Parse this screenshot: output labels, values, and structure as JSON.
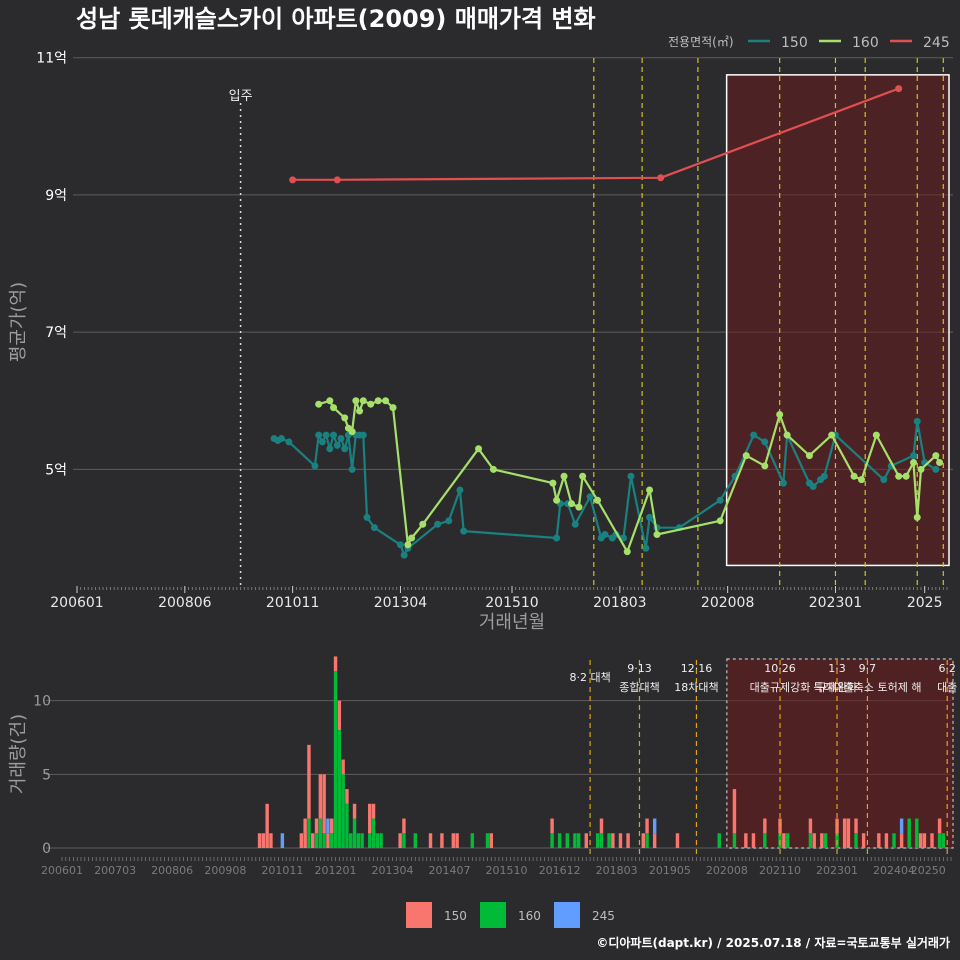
{
  "chart_data": {
    "title": "성남 롯데캐슬스카이 아파트(2009) 매매가격 변화",
    "credit": "©디아파트(dapt.kr) / 2025.07.18 / 자료=국토교통부 실거래가",
    "legend_title": "전용면적(㎡)",
    "series_colors": {
      "150": "#1a8080",
      "160": "#a6e06a",
      "245": "#e05050"
    },
    "bar_colors": {
      "150": "#f8766d",
      "160": "#00ba38",
      "245": "#619cff"
    },
    "price_chart": {
      "type": "line",
      "xlabel": "거래년월",
      "ylabel": "평균가(억)",
      "x_ticks": [
        "200601",
        "200806",
        "201011",
        "201304",
        "201510",
        "201803",
        "202008",
        "202301",
        "2025"
      ],
      "y_ticks": [
        {
          "value": 5,
          "label": "5억"
        },
        {
          "value": 7,
          "label": "7억"
        },
        {
          "value": 9,
          "label": "9억"
        },
        {
          "value": 11,
          "label": "11억"
        }
      ],
      "ylim": [
        3.3,
        11.2
      ],
      "move_in": {
        "date": "2009-09",
        "label": "입주"
      },
      "series": [
        {
          "name": "150",
          "points": [
            [
              "2010-06",
              5.45
            ],
            [
              "2010-07",
              5.42
            ],
            [
              "2010-08",
              5.45
            ],
            [
              "2010-10",
              5.4
            ],
            [
              "2011-05",
              5.05
            ],
            [
              "2011-06",
              5.5
            ],
            [
              "2011-07",
              5.4
            ],
            [
              "2011-08",
              5.5
            ],
            [
              "2011-09",
              5.3
            ],
            [
              "2011-10",
              5.5
            ],
            [
              "2011-11",
              5.35
            ],
            [
              "2011-12",
              5.45
            ],
            [
              "2012-01",
              5.3
            ],
            [
              "2012-02",
              5.5
            ],
            [
              "2012-03",
              5.0
            ],
            [
              "2012-04",
              5.5
            ],
            [
              "2012-05",
              5.5
            ],
            [
              "2012-06",
              5.5
            ],
            [
              "2012-07",
              4.3
            ],
            [
              "2012-09",
              4.15
            ],
            [
              "2013-04",
              3.9
            ],
            [
              "2013-05",
              3.75
            ],
            [
              "2013-06",
              3.85
            ],
            [
              "2014-02",
              4.2
            ],
            [
              "2014-05",
              4.25
            ],
            [
              "2014-08",
              4.7
            ],
            [
              "2014-09",
              4.1
            ],
            [
              "2016-10",
              4.0
            ],
            [
              "2016-11",
              4.5
            ],
            [
              "2017-01",
              4.5
            ],
            [
              "2017-03",
              4.2
            ],
            [
              "2017-07",
              4.6
            ],
            [
              "2017-10",
              4.0
            ],
            [
              "2017-11",
              4.05
            ],
            [
              "2018-01",
              4.0
            ],
            [
              "2018-02",
              4.05
            ],
            [
              "2018-04",
              4.0
            ],
            [
              "2018-06",
              4.9
            ],
            [
              "2018-10",
              3.85
            ],
            [
              "2018-11",
              4.3
            ],
            [
              "2019-01",
              4.15
            ],
            [
              "2019-07",
              4.15
            ],
            [
              "2020-06",
              4.55
            ],
            [
              "2020-10",
              4.9
            ],
            [
              "2021-03",
              5.5
            ],
            [
              "2021-06",
              5.4
            ],
            [
              "2021-11",
              4.8
            ],
            [
              "2021-12",
              5.5
            ],
            [
              "2022-06",
              4.8
            ],
            [
              "2022-07",
              4.75
            ],
            [
              "2022-09",
              4.85
            ],
            [
              "2022-10",
              4.9
            ],
            [
              "2023-01",
              5.5
            ],
            [
              "2024-02",
              4.85
            ],
            [
              "2024-04",
              5.05
            ],
            [
              "2024-10",
              5.2
            ],
            [
              "2024-11",
              5.7
            ],
            [
              "2025-01",
              5.1
            ],
            [
              "2025-04",
              5.0
            ]
          ]
        },
        {
          "name": "160",
          "points": [
            [
              "2011-06",
              5.95
            ],
            [
              "2011-09",
              6.0
            ],
            [
              "2011-10",
              5.9
            ],
            [
              "2012-01",
              5.75
            ],
            [
              "2012-02",
              5.6
            ],
            [
              "2012-03",
              5.55
            ],
            [
              "2012-04",
              6.0
            ],
            [
              "2012-05",
              5.85
            ],
            [
              "2012-06",
              6.0
            ],
            [
              "2012-08",
              5.95
            ],
            [
              "2012-10",
              6.0
            ],
            [
              "2012-12",
              6.0
            ],
            [
              "2013-02",
              5.9
            ],
            [
              "2013-06",
              3.9
            ],
            [
              "2013-07",
              4.0
            ],
            [
              "2013-10",
              4.2
            ],
            [
              "2015-01",
              5.3
            ],
            [
              "2015-05",
              5.0
            ],
            [
              "2016-09",
              4.8
            ],
            [
              "2016-10",
              4.55
            ],
            [
              "2016-12",
              4.9
            ],
            [
              "2017-02",
              4.5
            ],
            [
              "2017-04",
              4.45
            ],
            [
              "2017-05",
              4.9
            ],
            [
              "2017-09",
              4.55
            ],
            [
              "2018-05",
              3.8
            ],
            [
              "2018-11",
              4.7
            ],
            [
              "2019-01",
              4.05
            ],
            [
              "2020-06",
              4.25
            ],
            [
              "2021-01",
              5.2
            ],
            [
              "2021-06",
              5.05
            ],
            [
              "2021-10",
              5.8
            ],
            [
              "2021-12",
              5.5
            ],
            [
              "2022-06",
              5.2
            ],
            [
              "2022-12",
              5.5
            ],
            [
              "2023-06",
              4.9
            ],
            [
              "2023-08",
              4.85
            ],
            [
              "2023-12",
              5.5
            ],
            [
              "2024-06",
              4.9
            ],
            [
              "2024-08",
              4.9
            ],
            [
              "2024-10",
              5.1
            ],
            [
              "2024-11",
              4.3
            ],
            [
              "2024-12",
              5.0
            ],
            [
              "2025-04",
              5.2
            ],
            [
              "2025-05",
              5.1
            ]
          ]
        },
        {
          "name": "245",
          "points": [
            [
              "2010-11",
              9.22
            ],
            [
              "2011-11",
              9.22
            ],
            [
              "2019-02",
              9.25
            ],
            [
              "2024-06",
              10.55
            ]
          ]
        }
      ],
      "policy_lines": [
        "2017-08",
        "2018-09",
        "2019-12",
        "2021-10",
        "2023-01",
        "2023-09",
        "2024-11",
        "2025-06"
      ],
      "policy_color": "#d4c21a",
      "highlight": {
        "start": "2020-08",
        "end": "2025-07",
        "ymin": 3.6,
        "ymax": 10.75
      }
    },
    "volume_chart": {
      "type": "bar",
      "ylabel": "거래량(건)",
      "y_ticks": [
        0,
        5,
        10
      ],
      "ylim": [
        0,
        13.3
      ],
      "x_ticks": [
        "200601",
        "200703",
        "200806",
        "200908",
        "201011",
        "201201",
        "201304",
        "201407",
        "201510",
        "201612",
        "201803",
        "201905",
        "202008",
        "202110",
        "202301",
        "202404",
        "20250"
      ],
      "bars": [
        [
          "2010-05",
          {
            "150": 1
          }
        ],
        [
          "2010-06",
          {
            "150": 1,
            "160": 0
          }
        ],
        [
          "2010-07",
          {
            "150": 3
          }
        ],
        [
          "2010-08",
          {
            "150": 1
          }
        ],
        [
          "2010-11",
          {
            "245": 1
          }
        ],
        [
          "2011-04",
          {
            "150": 1
          }
        ],
        [
          "2011-05",
          {
            "150": 2
          }
        ],
        [
          "2011-06",
          {
            "150": 5,
            "160": 2
          }
        ],
        [
          "2011-07",
          {
            "150": 1
          }
        ],
        [
          "2011-08",
          {
            "150": 1,
            "160": 1
          }
        ],
        [
          "2011-09",
          {
            "150": 3,
            "160": 2
          }
        ],
        [
          "2011-10",
          {
            "150": 4,
            "160": 1
          }
        ],
        [
          "2011-11",
          {
            "150": 1,
            "245": 1
          }
        ],
        [
          "2011-12",
          {
            "150": 1,
            "160": 1
          }
        ],
        [
          "2012-01",
          {
            "160": 12,
            "150": 1
          }
        ],
        [
          "2012-02",
          {
            "160": 8,
            "150": 2
          }
        ],
        [
          "2012-03",
          {
            "160": 5,
            "150": 1
          }
        ],
        [
          "2012-04",
          {
            "160": 3,
            "150": 1
          }
        ],
        [
          "2012-05",
          {
            "160": 1
          }
        ],
        [
          "2012-06",
          {
            "160": 2,
            "150": 1
          }
        ],
        [
          "2012-07",
          {
            "160": 1
          }
        ],
        [
          "2012-08",
          {
            "160": 1
          }
        ],
        [
          "2012-10",
          {
            "150": 2,
            "160": 1
          }
        ],
        [
          "2012-11",
          {
            "160": 2,
            "150": 1
          }
        ],
        [
          "2012-12",
          {
            "160": 1
          }
        ],
        [
          "2013-01",
          {
            "160": 1
          }
        ],
        [
          "2013-06",
          {
            "150": 1
          }
        ],
        [
          "2013-07",
          {
            "150": 1,
            "160": 1
          }
        ],
        [
          "2013-10",
          {
            "160": 1
          }
        ],
        [
          "2014-02",
          {
            "150": 1
          }
        ],
        [
          "2014-05",
          {
            "150": 1
          }
        ],
        [
          "2014-08",
          {
            "150": 1
          }
        ],
        [
          "2014-09",
          {
            "150": 1
          }
        ],
        [
          "2015-01",
          {
            "160": 1
          }
        ],
        [
          "2015-05",
          {
            "160": 1
          }
        ],
        [
          "2015-06",
          {
            "150": 1
          }
        ],
        [
          "2016-10",
          {
            "160": 1,
            "150": 1
          }
        ],
        [
          "2016-12",
          {
            "160": 1
          }
        ],
        [
          "2017-02",
          {
            "160": 1
          }
        ],
        [
          "2017-04",
          {
            "160": 1
          }
        ],
        [
          "2017-05",
          {
            "160": 1
          }
        ],
        [
          "2017-07",
          {
            "150": 1
          }
        ],
        [
          "2017-10",
          {
            "160": 1
          }
        ],
        [
          "2017-11",
          {
            "150": 1,
            "160": 1
          }
        ],
        [
          "2018-01",
          {
            "160": 1
          }
        ],
        [
          "2018-02",
          {
            "150": 1
          }
        ],
        [
          "2018-04",
          {
            "150": 1
          }
        ],
        [
          "2018-06",
          {
            "150": 1
          }
        ],
        [
          "2018-10",
          {
            "150": 1
          }
        ],
        [
          "2018-11",
          {
            "160": 1,
            "150": 1
          }
        ],
        [
          "2019-01",
          {
            "245": 1,
            "150": 1
          }
        ],
        [
          "2019-07",
          {
            "150": 1
          }
        ],
        [
          "2020-06",
          {
            "160": 1
          }
        ],
        [
          "2020-10",
          {
            "150": 3,
            "160": 1
          }
        ],
        [
          "2021-01",
          {
            "150": 1
          }
        ],
        [
          "2021-03",
          {
            "150": 1
          }
        ],
        [
          "2021-06",
          {
            "150": 1,
            "160": 1
          }
        ],
        [
          "2021-10",
          {
            "150": 1,
            "160": 1
          }
        ],
        [
          "2021-11",
          {
            "150": 1
          }
        ],
        [
          "2021-12",
          {
            "160": 1
          }
        ],
        [
          "2022-06",
          {
            "150": 1,
            "160": 1
          }
        ],
        [
          "2022-07",
          {
            "150": 1
          }
        ],
        [
          "2022-09",
          {
            "150": 1
          }
        ],
        [
          "2022-10",
          {
            "160": 1
          }
        ],
        [
          "2023-01",
          {
            "150": 1,
            "160": 1
          }
        ],
        [
          "2023-03",
          {
            "150": 2
          }
        ],
        [
          "2023-04",
          {
            "150": 2
          }
        ],
        [
          "2023-06",
          {
            "150": 1,
            "160": 1
          }
        ],
        [
          "2023-08",
          {
            "150": 1
          }
        ],
        [
          "2023-12",
          {
            "150": 1
          }
        ],
        [
          "2024-02",
          {
            "150": 1
          }
        ],
        [
          "2024-04",
          {
            "160": 1
          }
        ],
        [
          "2024-06",
          {
            "150": 1,
            "245": 1
          }
        ],
        [
          "2024-08",
          {
            "160": 2
          }
        ],
        [
          "2024-10",
          {
            "160": 2
          }
        ],
        [
          "2024-11",
          {
            "150": 1
          }
        ],
        [
          "2024-12",
          {
            "150": 1
          }
        ],
        [
          "2025-02",
          {
            "150": 1
          }
        ],
        [
          "2025-04",
          {
            "150": 1,
            "160": 1
          }
        ],
        [
          "2025-05",
          {
            "160": 1
          }
        ]
      ],
      "policies": [
        {
          "date": "2017-08",
          "line1": "8·2 대책",
          "line2": ""
        },
        {
          "date": "2018-09",
          "line1": "9·13",
          "line2": "종합대책"
        },
        {
          "date": "2019-12",
          "line1": "12·16",
          "line2": "18차대책"
        },
        {
          "date": "2021-10",
          "line1": "10·26",
          "line2": "대출규제강화"
        },
        {
          "date": "2023-01",
          "line1": "1·3",
          "line2": "규제완화"
        },
        {
          "date": "2023-09",
          "line1": "9·7",
          "line2": "특례대출축소 토허제 해"
        },
        {
          "date": "2025-06",
          "line1": "6·2",
          "line2": "대출"
        }
      ],
      "highlight": {
        "start": "2020-08",
        "end": "2025-07"
      },
      "legend": [
        "150",
        "160",
        "245"
      ]
    }
  }
}
